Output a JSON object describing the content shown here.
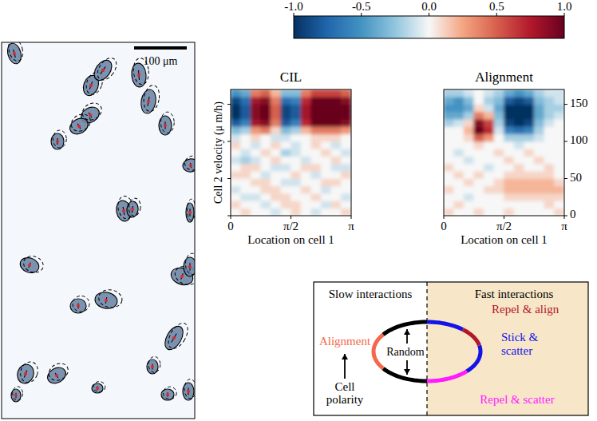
{
  "image_panel": {
    "scale_bar_label": "100 μm"
  },
  "colorbar": {
    "range": [
      -1,
      1
    ],
    "ticks": [
      {
        "value": -1,
        "label": "-1.0"
      },
      {
        "value": -0.5,
        "label": "-0.5"
      },
      {
        "value": 0,
        "label": "0.0"
      },
      {
        "value": 0.5,
        "label": "0.5"
      },
      {
        "value": 1,
        "label": "1.0"
      }
    ]
  },
  "chart_data": [
    {
      "type": "heatmap",
      "title": "CIL",
      "xlabel": "Location on cell 1",
      "ylabel": "Cell 2 velocity (μ m/h)",
      "xlim": [
        0,
        3.14159
      ],
      "ylim": [
        0,
        170
      ],
      "xticks": [
        0,
        {
          "value": 1.5708,
          "label": "π/2"
        },
        {
          "value": 3.14159,
          "label": "π"
        }
      ],
      "yticks": [
        0,
        50,
        100,
        150
      ],
      "tick_labels": "x",
      "x": [
        0.1309,
        0.3927,
        0.6545,
        0.9163,
        1.1781,
        1.4399,
        1.7017,
        1.9635,
        2.2253,
        2.4871,
        2.7489,
        3.0107
      ],
      "y": [
        5,
        15,
        25,
        35,
        45,
        55,
        65,
        75,
        85,
        95,
        105,
        115,
        125,
        135,
        145,
        155,
        165
      ],
      "values": [
        [
          0.0,
          0.1,
          0.0,
          0.0,
          -0.1,
          0.0,
          0.1,
          0.0,
          -0.1,
          0.0,
          0.0,
          0.1
        ],
        [
          0.1,
          0.0,
          0.0,
          -0.1,
          0.0,
          0.1,
          0.1,
          0.0,
          0.0,
          -0.1,
          0.1,
          0.0
        ],
        [
          0.0,
          -0.1,
          -0.1,
          0.0,
          0.1,
          0.1,
          0.0,
          0.0,
          0.1,
          0.0,
          0.0,
          -0.1
        ],
        [
          -0.1,
          0.0,
          0.0,
          0.1,
          0.1,
          0.0,
          0.0,
          0.1,
          0.0,
          -0.1,
          0.0,
          0.0
        ],
        [
          0.0,
          0.0,
          0.1,
          0.1,
          0.0,
          -0.1,
          -0.1,
          0.0,
          0.0,
          0.1,
          0.1,
          0.0
        ],
        [
          0.1,
          0.1,
          0.0,
          -0.1,
          0.0,
          0.0,
          0.1,
          0.0,
          -0.1,
          0.0,
          0.0,
          0.1
        ],
        [
          0.0,
          0.1,
          0.1,
          0.0,
          -0.1,
          -0.1,
          0.0,
          0.1,
          0.1,
          0.0,
          -0.1,
          -0.1
        ],
        [
          -0.1,
          -0.2,
          -0.1,
          0.0,
          0.1,
          0.0,
          0.0,
          -0.1,
          0.0,
          0.0,
          0.1,
          0.0
        ],
        [
          0.0,
          -0.1,
          0.0,
          0.1,
          0.0,
          -0.2,
          -0.1,
          0.0,
          0.0,
          0.1,
          0.0,
          -0.1
        ],
        [
          0.1,
          0.0,
          -0.1,
          0.0,
          0.1,
          0.0,
          -0.1,
          0.0,
          0.1,
          0.0,
          -0.1,
          0.0
        ],
        [
          -0.1,
          0.0,
          0.1,
          0.0,
          -0.1,
          -0.1,
          0.0,
          0.0,
          0.1,
          0.1,
          0.1,
          0.0
        ],
        [
          -0.3,
          -0.2,
          0.3,
          0.4,
          0.1,
          -0.3,
          -0.2,
          0.2,
          0.4,
          0.4,
          0.4,
          0.3
        ],
        [
          -0.8,
          -0.6,
          0.8,
          0.9,
          0.4,
          -0.8,
          -0.6,
          0.7,
          1.0,
          1.0,
          1.0,
          0.9
        ],
        [
          -1.0,
          -0.8,
          0.9,
          1.0,
          0.5,
          -0.9,
          -0.8,
          0.8,
          1.0,
          1.0,
          1.0,
          1.0
        ],
        [
          -1.0,
          -0.8,
          0.9,
          1.0,
          0.5,
          -0.9,
          -0.8,
          0.8,
          1.0,
          1.0,
          1.0,
          1.0
        ],
        [
          -0.9,
          -0.7,
          0.8,
          0.9,
          0.4,
          -0.7,
          -0.6,
          0.7,
          1.0,
          1.0,
          1.0,
          0.9
        ],
        [
          -0.5,
          -0.4,
          0.4,
          0.5,
          0.2,
          -0.3,
          -0.3,
          0.4,
          0.6,
          0.6,
          0.6,
          0.5
        ]
      ]
    },
    {
      "type": "heatmap",
      "title": "Alignment",
      "xlabel": "Location on cell 1",
      "xlim": [
        0,
        3.14159
      ],
      "ylim": [
        0,
        170
      ],
      "xticks": [
        0,
        {
          "value": 1.5708,
          "label": "π/2"
        },
        {
          "value": 3.14159,
          "label": "π"
        }
      ],
      "yticks": [
        0,
        50,
        100,
        150
      ],
      "tick_labels": true,
      "x": [
        0.1309,
        0.3927,
        0.6545,
        0.9163,
        1.1781,
        1.4399,
        1.7017,
        1.9635,
        2.2253,
        2.4871,
        2.7489,
        3.0107
      ],
      "y": [
        5,
        15,
        25,
        35,
        45,
        55,
        65,
        75,
        85,
        95,
        105,
        115,
        125,
        135,
        145,
        155,
        165
      ],
      "values": [
        [
          0.1,
          0.0,
          0.0,
          0.1,
          0.0,
          0.0,
          0.1,
          0.0,
          0.0,
          0.0,
          0.0,
          0.1
        ],
        [
          0.0,
          0.1,
          0.0,
          0.0,
          0.0,
          0.0,
          0.0,
          0.0,
          0.0,
          0.0,
          0.1,
          0.0
        ],
        [
          0.0,
          0.0,
          -0.1,
          0.0,
          0.0,
          0.0,
          0.1,
          0.1,
          0.1,
          0.1,
          0.1,
          0.1
        ],
        [
          0.1,
          0.0,
          0.0,
          0.0,
          0.1,
          0.1,
          0.2,
          0.2,
          0.2,
          0.2,
          0.2,
          0.2
        ],
        [
          0.0,
          0.0,
          0.1,
          0.0,
          0.0,
          0.1,
          0.2,
          0.2,
          0.2,
          0.2,
          0.2,
          0.1
        ],
        [
          0.0,
          0.1,
          0.0,
          0.1,
          0.0,
          0.0,
          0.1,
          0.1,
          0.1,
          0.1,
          0.1,
          0.0
        ],
        [
          0.1,
          0.0,
          0.0,
          0.0,
          -0.1,
          0.0,
          0.0,
          0.1,
          0.0,
          0.0,
          0.1,
          0.0
        ],
        [
          0.0,
          0.0,
          -0.1,
          0.0,
          0.0,
          0.0,
          0.1,
          0.0,
          0.0,
          0.1,
          0.0,
          0.0
        ],
        [
          0.0,
          -0.1,
          0.0,
          0.0,
          0.0,
          0.1,
          0.0,
          0.0,
          0.1,
          0.0,
          0.0,
          0.0
        ],
        [
          0.0,
          0.0,
          0.0,
          0.1,
          0.0,
          0.0,
          0.0,
          -0.1,
          0.0,
          0.0,
          0.0,
          0.0
        ],
        [
          0.0,
          0.0,
          0.1,
          0.5,
          0.3,
          0.0,
          -0.2,
          -0.2,
          -0.2,
          -0.1,
          0.0,
          0.0
        ],
        [
          0.0,
          0.0,
          0.2,
          1.0,
          0.7,
          -0.1,
          -0.6,
          -0.7,
          -0.6,
          -0.2,
          0.0,
          0.0
        ],
        [
          -0.2,
          -0.1,
          0.1,
          0.9,
          0.6,
          -0.2,
          -0.9,
          -1.0,
          -0.9,
          -0.3,
          -0.1,
          0.0
        ],
        [
          -0.4,
          -0.4,
          -0.2,
          0.4,
          0.2,
          -0.3,
          -1.0,
          -1.0,
          -1.0,
          -0.4,
          -0.2,
          -0.1
        ],
        [
          -0.5,
          -0.5,
          -0.4,
          0.1,
          -0.1,
          -0.4,
          -1.0,
          -1.0,
          -1.0,
          -0.4,
          -0.2,
          -0.2
        ],
        [
          -0.4,
          -0.5,
          -0.3,
          0.0,
          -0.2,
          -0.3,
          -0.8,
          -0.9,
          -0.8,
          -0.3,
          -0.2,
          -0.1
        ],
        [
          -0.2,
          -0.2,
          -0.1,
          0.0,
          -0.1,
          -0.2,
          -0.4,
          -0.5,
          -0.4,
          -0.2,
          -0.1,
          -0.1
        ]
      ]
    }
  ],
  "diagram": {
    "slow_title": "Slow interactions",
    "fast_title": "Fast interactions",
    "alignment": "Alignment",
    "cell_polarity": "Cell polarity",
    "random": "Random",
    "repel_align": "Repel & align",
    "stick_scatter": "Stick & scatter",
    "repel_scatter": "Repel & scatter"
  }
}
